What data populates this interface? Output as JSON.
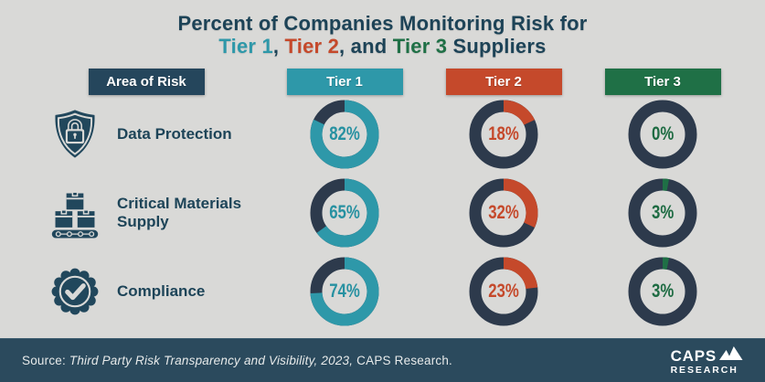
{
  "title": {
    "line1": "Percent of Companies Monitoring Risk for",
    "line2": {
      "tier1": "Tier 1",
      "comma1": ", ",
      "tier2": "Tier 2",
      "comma2": ", and ",
      "tier3": "Tier 3",
      "suffix": " Suppliers"
    }
  },
  "header": {
    "area_label": "Area of Risk",
    "tier_labels": [
      "Tier 1",
      "Tier 2",
      "Tier 3"
    ]
  },
  "icons": {
    "rows": [
      "shield-lock-icon",
      "conveyor-boxes-icon",
      "badge-check-icon"
    ],
    "logo": "mountain-icon"
  },
  "colors": {
    "background": "#D9D9D7",
    "navy_dark": "#1D4458",
    "header_navy": "#25465C",
    "teal": "#2E98A9",
    "red": "#C5492B",
    "green": "#1F7046",
    "donut_track": "#2D3A4C",
    "footer_bg": "#2B4A5D"
  },
  "chart_data": {
    "type": "donut",
    "title": "Percent of Companies Monitoring Risk for Tier 1, Tier 2, and Tier 3 Suppliers",
    "categories": [
      "Data Protection",
      "Critical Materials Supply",
      "Compliance"
    ],
    "series": [
      {
        "name": "Tier 1",
        "color": "#2E98A9",
        "text_color": "#2791A1",
        "values": [
          82,
          65,
          74
        ]
      },
      {
        "name": "Tier 2",
        "color": "#C5492B",
        "text_color": "#C5492B",
        "values": [
          18,
          32,
          23
        ]
      },
      {
        "name": "Tier 3",
        "color": "#1F7046",
        "text_color": "#1D6B42",
        "values": [
          0,
          3,
          3
        ]
      }
    ],
    "unit": "%",
    "value_label_format": "{value}%",
    "ring_track_color": "#2D3A4C",
    "fill_direction": "clockwise-from-top",
    "legend_position": "column-headers",
    "grid": false
  },
  "footer": {
    "source_prefix": "Source: ",
    "source_italic": "Third Party Risk Transparency and Visibility, 2023,",
    "source_suffix": " CAPS Research.",
    "logo": {
      "line1": "CAPS",
      "line2": "RESEARCH"
    }
  }
}
